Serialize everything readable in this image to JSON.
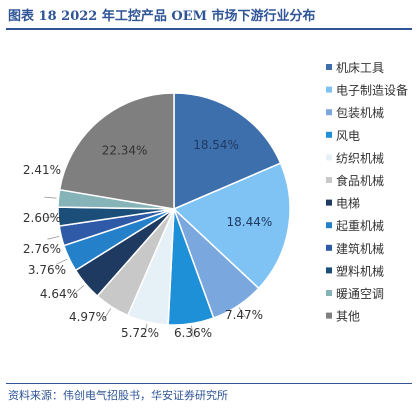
{
  "title": "图表 18 2022 年工控产品 OEM 市场下游行业分布",
  "source": "资料来源：伟创电气招股书，华安证券研究所",
  "colors": {
    "title": "#2f5597",
    "label_dark": "#333333",
    "label_light": "#ffffff"
  },
  "chart_data": {
    "type": "pie",
    "legend_position": "right",
    "start_angle_deg": 0,
    "direction": "clockwise",
    "categories": [
      "机床工具",
      "电子制造设备",
      "包装机械",
      "风电",
      "纺织机械",
      "食品机械",
      "电梯",
      "起重机械",
      "建筑机械",
      "塑料机械",
      "暖通空调",
      "其他"
    ],
    "values": [
      18.54,
      18.44,
      7.47,
      6.36,
      5.72,
      4.97,
      4.64,
      3.76,
      2.76,
      2.6,
      2.41,
      22.34
    ],
    "labels": [
      "18.54%",
      "18.44%",
      "7.47%",
      "6.36%",
      "5.72%",
      "4.97%",
      "4.64%",
      "3.76%",
      "2.76%",
      "2.60%",
      "2.41%",
      "22.34%"
    ],
    "colors": [
      "#3e6fad",
      "#7fc3f5",
      "#7aa7dd",
      "#1e90d8",
      "#e6f0f7",
      "#c8c8c8",
      "#1f3a60",
      "#2480c8",
      "#2e5aa8",
      "#1b4f7a",
      "#86b3b8",
      "#7f7f7f"
    ]
  }
}
